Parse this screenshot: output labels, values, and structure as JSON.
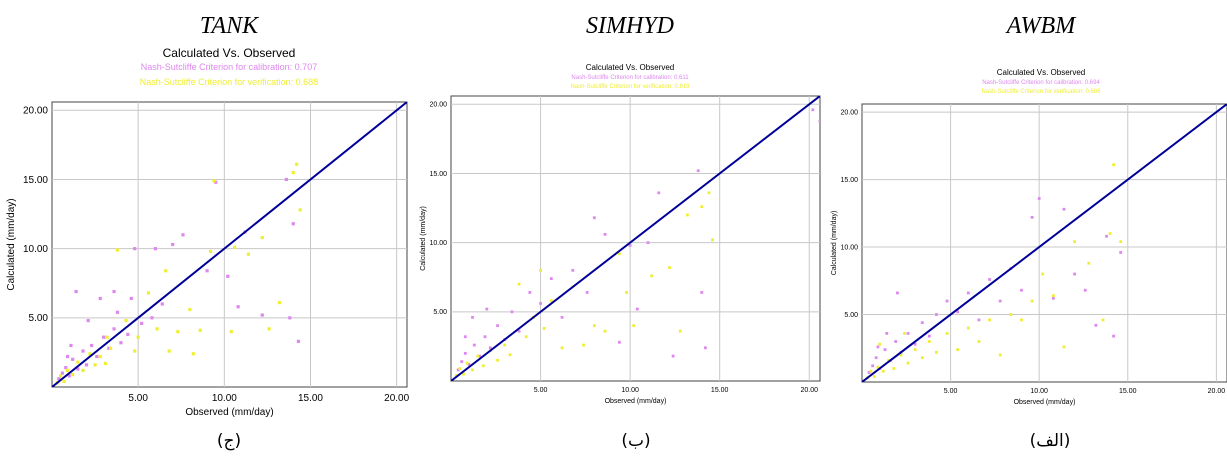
{
  "chart_data": [
    {
      "type": "scatter",
      "model_title": "TANK",
      "title": "Calculated Vs. Observed",
      "cal_text": "Nash-Sutcliffe Criterion for calibration: 0.707",
      "ver_text": "Nash-Sutcliffe Criterion for verification: 0.688",
      "xlabel": "Observed (mm/day)",
      "ylabel": "Calculated (mm/day)",
      "xlim": [
        0,
        20.6
      ],
      "ylim": [
        0,
        20.6
      ],
      "x_ticks": [
        "5.00",
        "10.00",
        "15.00",
        "20.00"
      ],
      "y_ticks": [
        "5.00",
        "10.00",
        "15.00",
        "20.00"
      ],
      "caption": "(ج)",
      "colors": {
        "calibration": "#dd88ee",
        "verification": "#eeee33",
        "line": "#000099"
      },
      "series": [
        {
          "role": "calibration",
          "points": [
            [
              0.4,
              0.6
            ],
            [
              0.6,
              1.0
            ],
            [
              0.8,
              1.4
            ],
            [
              1.0,
              0.8
            ],
            [
              1.2,
              2.0
            ],
            [
              1.5,
              1.3
            ],
            [
              1.8,
              2.6
            ],
            [
              2.0,
              1.6
            ],
            [
              2.3,
              3.0
            ],
            [
              2.6,
              2.2
            ],
            [
              3.0,
              3.6
            ],
            [
              3.3,
              2.8
            ],
            [
              3.6,
              4.2
            ],
            [
              4.0,
              3.2
            ],
            [
              1.4,
              6.9
            ],
            [
              2.8,
              6.4
            ],
            [
              3.6,
              6.9
            ],
            [
              4.8,
              10.0
            ],
            [
              6.0,
              10.0
            ],
            [
              7.0,
              10.3
            ],
            [
              7.6,
              11.0
            ],
            [
              9.0,
              8.4
            ],
            [
              9.5,
              14.8
            ],
            [
              10.2,
              8.0
            ],
            [
              10.8,
              5.8
            ],
            [
              11.2,
              11.2
            ],
            [
              12.2,
              5.2
            ],
            [
              13.8,
              5.0
            ],
            [
              13.6,
              15.0
            ],
            [
              14.3,
              3.3
            ],
            [
              14.0,
              11.8
            ],
            [
              4.4,
              3.8
            ],
            [
              5.2,
              4.6
            ],
            [
              5.8,
              5.0
            ],
            [
              6.4,
              6.0
            ],
            [
              2.1,
              4.8
            ],
            [
              1.1,
              3.0
            ],
            [
              0.9,
              2.2
            ],
            [
              3.8,
              5.4
            ],
            [
              4.6,
              6.4
            ]
          ]
        },
        {
          "role": "verification",
          "points": [
            [
              0.3,
              0.3
            ],
            [
              0.5,
              0.8
            ],
            [
              0.7,
              0.4
            ],
            [
              0.9,
              1.2
            ],
            [
              1.2,
              0.9
            ],
            [
              1.5,
              1.8
            ],
            [
              1.8,
              1.2
            ],
            [
              2.2,
              2.4
            ],
            [
              2.5,
              1.6
            ],
            [
              2.8,
              2.2
            ],
            [
              3.1,
              1.7
            ],
            [
              3.4,
              2.8
            ],
            [
              3.8,
              9.9
            ],
            [
              4.3,
              4.8
            ],
            [
              5.0,
              3.6
            ],
            [
              5.6,
              6.8
            ],
            [
              6.1,
              4.2
            ],
            [
              6.6,
              8.4
            ],
            [
              7.3,
              4.0
            ],
            [
              8.0,
              5.6
            ],
            [
              8.6,
              4.1
            ],
            [
              9.2,
              9.8
            ],
            [
              9.4,
              14.9
            ],
            [
              10.4,
              4.0
            ],
            [
              10.6,
              10.1
            ],
            [
              11.4,
              9.6
            ],
            [
              12.2,
              10.8
            ],
            [
              12.6,
              4.2
            ],
            [
              13.2,
              6.1
            ],
            [
              14.0,
              15.5
            ],
            [
              14.2,
              16.1
            ],
            [
              14.4,
              12.8
            ],
            [
              4.8,
              2.6
            ],
            [
              6.8,
              2.6
            ],
            [
              8.2,
              2.4
            ],
            [
              3.2,
              3.6
            ]
          ]
        }
      ]
    },
    {
      "type": "scatter",
      "model_title": "SIMHYD",
      "title": "Calculated Vs. Observed",
      "cal_text": "Nash-Sutcliffe Criterion for calibration: 0.611",
      "ver_text": "Nash-Sutcliffe Criterion for verification: 0.619",
      "xlabel": "Observed (mm/day)",
      "ylabel": "Calculated (mm/day)",
      "xlim": [
        0,
        20.6
      ],
      "ylim": [
        0,
        20.6
      ],
      "x_ticks": [
        "5.00",
        "10.00",
        "15.00",
        "20.00"
      ],
      "y_ticks": [
        "5.00",
        "10.00",
        "15.00",
        "20.00"
      ],
      "caption": "(ب)",
      "colors": {
        "calibration": "#dd88ee",
        "verification": "#eeee33",
        "line": "#000099"
      },
      "series": [
        {
          "role": "calibration",
          "points": [
            [
              0.4,
              0.8
            ],
            [
              0.6,
              1.4
            ],
            [
              0.8,
              2.0
            ],
            [
              1.0,
              1.2
            ],
            [
              1.3,
              2.6
            ],
            [
              1.6,
              1.8
            ],
            [
              1.9,
              3.2
            ],
            [
              2.2,
              2.4
            ],
            [
              2.6,
              4.0
            ],
            [
              3.0,
              3.0
            ],
            [
              3.4,
              5.0
            ],
            [
              3.8,
              3.6
            ],
            [
              4.4,
              6.4
            ],
            [
              5.0,
              5.6
            ],
            [
              5.6,
              7.4
            ],
            [
              6.2,
              4.6
            ],
            [
              6.8,
              8.0
            ],
            [
              7.6,
              6.4
            ],
            [
              8.0,
              11.8
            ],
            [
              8.6,
              10.6
            ],
            [
              9.4,
              2.8
            ],
            [
              10.0,
              9.8
            ],
            [
              10.4,
              5.2
            ],
            [
              11.0,
              10.0
            ],
            [
              11.6,
              13.6
            ],
            [
              12.4,
              1.8
            ],
            [
              13.8,
              15.2
            ],
            [
              14.2,
              2.4
            ],
            [
              14.0,
              6.4
            ],
            [
              20.2,
              19.6
            ],
            [
              20.6,
              18.8
            ],
            [
              1.2,
              4.6
            ],
            [
              2.0,
              5.2
            ],
            [
              0.8,
              3.2
            ]
          ]
        },
        {
          "role": "verification",
          "points": [
            [
              0.3,
              0.4
            ],
            [
              0.5,
              0.9
            ],
            [
              0.7,
              0.5
            ],
            [
              0.9,
              1.3
            ],
            [
              1.2,
              0.8
            ],
            [
              1.5,
              1.8
            ],
            [
              1.8,
              1.1
            ],
            [
              2.2,
              2.2
            ],
            [
              2.6,
              1.5
            ],
            [
              3.0,
              2.6
            ],
            [
              3.3,
              1.9
            ],
            [
              3.8,
              7.0
            ],
            [
              4.2,
              3.2
            ],
            [
              4.6,
              4.6
            ],
            [
              5.2,
              3.8
            ],
            [
              5.6,
              5.8
            ],
            [
              6.2,
              2.4
            ],
            [
              6.8,
              6.8
            ],
            [
              7.4,
              2.6
            ],
            [
              8.0,
              4.0
            ],
            [
              8.6,
              3.6
            ],
            [
              9.4,
              9.2
            ],
            [
              9.8,
              6.4
            ],
            [
              10.2,
              4.0
            ],
            [
              11.2,
              7.6
            ],
            [
              12.2,
              8.2
            ],
            [
              12.8,
              3.6
            ],
            [
              13.2,
              12.0
            ],
            [
              14.0,
              12.6
            ],
            [
              14.4,
              13.6
            ],
            [
              14.6,
              10.2
            ],
            [
              5.0,
              8.0
            ]
          ]
        }
      ]
    },
    {
      "type": "scatter",
      "model_title": "AWBM",
      "title": "Calculated Vs. Observed",
      "cal_text": "Nash-Sutcliffe Criterion for calibration: 0.694",
      "ver_text": "Nash-Sutcliffe Criterion for verification: 0.686",
      "xlabel": "Observed (mm/day)",
      "ylabel": "Calculated (mm/day)",
      "xlim": [
        0,
        20.6
      ],
      "ylim": [
        0,
        20.6
      ],
      "x_ticks": [
        "5.00",
        "10.00",
        "15.00",
        "20.00"
      ],
      "y_ticks": [
        "5.00",
        "10.00",
        "15.00",
        "20.00"
      ],
      "caption": "(الف)",
      "colors": {
        "calibration": "#dd88ee",
        "verification": "#eeee33",
        "line": "#000099"
      },
      "series": [
        {
          "role": "calibration",
          "points": [
            [
              0.4,
              0.7
            ],
            [
              0.6,
              1.2
            ],
            [
              0.8,
              1.8
            ],
            [
              1.0,
              1.0
            ],
            [
              1.3,
              2.4
            ],
            [
              1.6,
              1.6
            ],
            [
              1.9,
              3.0
            ],
            [
              2.2,
              2.2
            ],
            [
              2.6,
              3.6
            ],
            [
              3.0,
              2.8
            ],
            [
              3.4,
              4.4
            ],
            [
              3.8,
              3.4
            ],
            [
              4.2,
              5.0
            ],
            [
              4.8,
              6.0
            ],
            [
              5.4,
              5.2
            ],
            [
              6.0,
              6.6
            ],
            [
              6.6,
              4.6
            ],
            [
              7.2,
              7.6
            ],
            [
              7.8,
              6.0
            ],
            [
              8.4,
              8.4
            ],
            [
              9.0,
              6.8
            ],
            [
              9.6,
              12.2
            ],
            [
              10.0,
              13.6
            ],
            [
              10.8,
              6.2
            ],
            [
              11.4,
              12.8
            ],
            [
              12.0,
              8.0
            ],
            [
              12.6,
              6.8
            ],
            [
              13.2,
              4.2
            ],
            [
              13.8,
              10.8
            ],
            [
              14.2,
              3.4
            ],
            [
              14.6,
              9.6
            ],
            [
              1.4,
              3.6
            ],
            [
              2.0,
              6.6
            ],
            [
              0.9,
              2.6
            ]
          ]
        },
        {
          "role": "verification",
          "points": [
            [
              0.3,
              0.3
            ],
            [
              0.5,
              0.8
            ],
            [
              0.7,
              0.4
            ],
            [
              0.9,
              1.1
            ],
            [
              1.2,
              0.8
            ],
            [
              1.5,
              1.6
            ],
            [
              1.8,
              1.0
            ],
            [
              2.2,
              2.0
            ],
            [
              2.6,
              1.4
            ],
            [
              3.0,
              2.4
            ],
            [
              3.4,
              1.8
            ],
            [
              3.8,
              3.0
            ],
            [
              4.2,
              2.2
            ],
            [
              4.8,
              3.6
            ],
            [
              5.4,
              2.4
            ],
            [
              6.0,
              4.0
            ],
            [
              6.6,
              3.0
            ],
            [
              7.2,
              4.6
            ],
            [
              7.8,
              2.0
            ],
            [
              8.4,
              5.0
            ],
            [
              9.0,
              4.6
            ],
            [
              9.6,
              6.0
            ],
            [
              10.2,
              8.0
            ],
            [
              10.8,
              6.4
            ],
            [
              11.4,
              2.6
            ],
            [
              12.0,
              10.4
            ],
            [
              12.8,
              8.8
            ],
            [
              13.6,
              4.6
            ],
            [
              14.0,
              11.0
            ],
            [
              14.2,
              16.1
            ],
            [
              14.6,
              10.4
            ],
            [
              1.0,
              2.8
            ],
            [
              2.4,
              3.6
            ]
          ]
        }
      ]
    }
  ]
}
